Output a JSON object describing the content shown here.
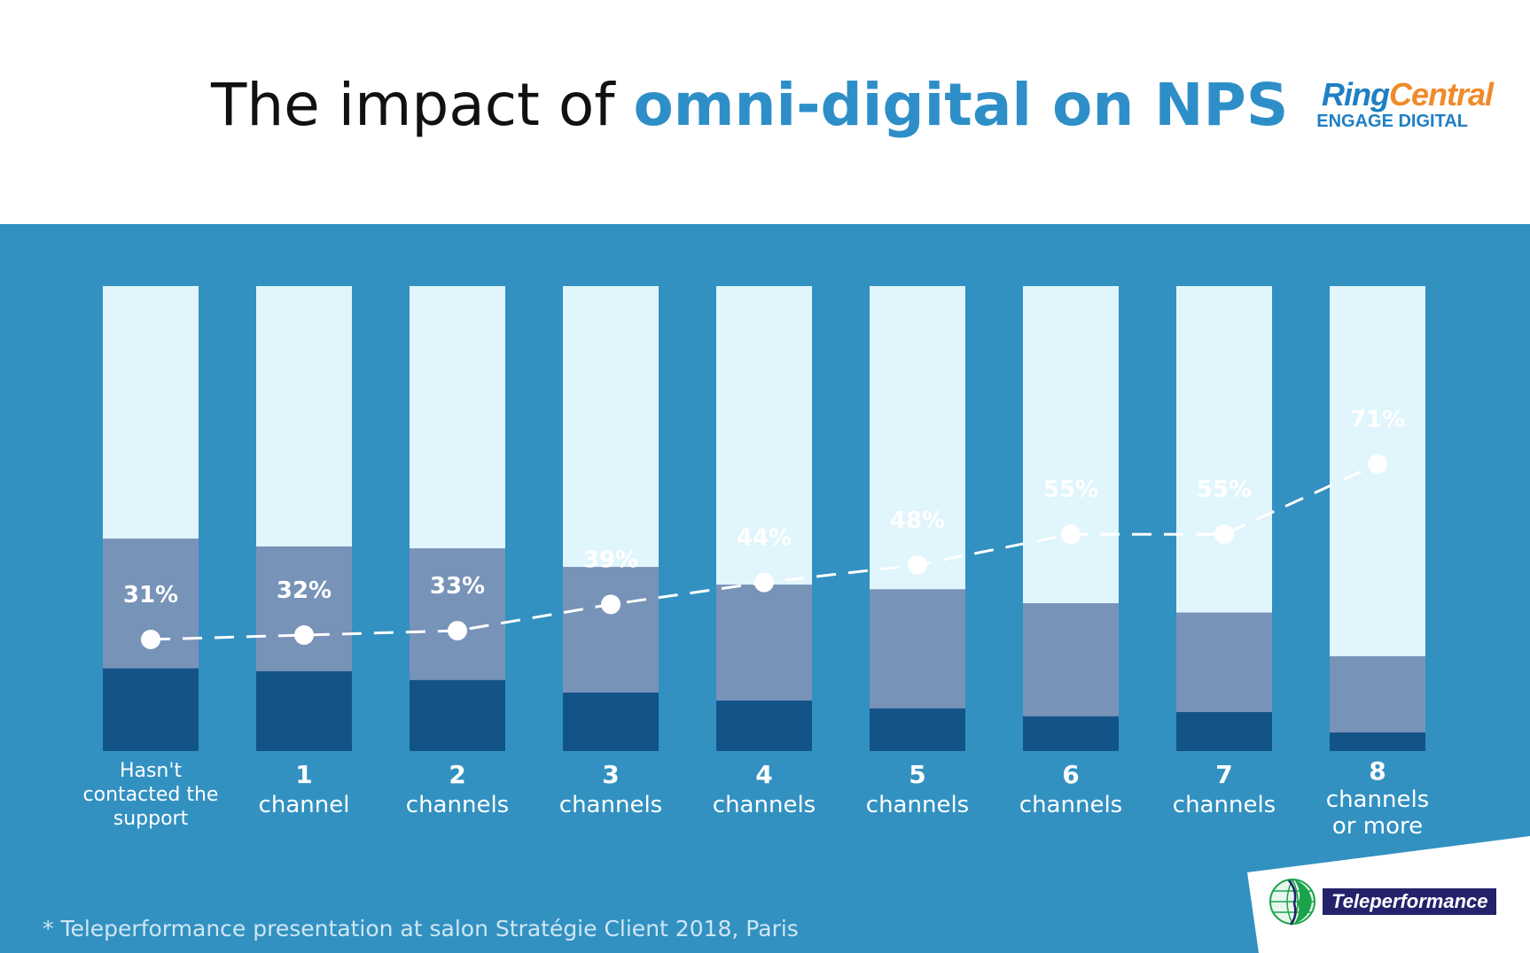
{
  "header": {
    "title_plain": "The impact of ",
    "title_highlight": "omni-digital on NPS",
    "logo_top_ring": "Ring",
    "logo_top_central": "Central",
    "logo_bottom": "ENGAGE DIGITAL"
  },
  "footer": {
    "note": "* Teleperformance presentation at salon Stratégie Client 2018, Paris",
    "partner_logo": "Teleperformance"
  },
  "colors": {
    "accent": "#2e8fc8",
    "band": "#3291c1",
    "segment_light": "#e0f5fc",
    "segment_mid": "#7893b8",
    "segment_dark": "#135488"
  },
  "chart_data": {
    "type": "bar",
    "stacked": true,
    "title": "The impact of omni-digital on NPS",
    "categories": [
      [
        "Hasn't",
        "contacted the",
        "support"
      ],
      [
        "1",
        "channel"
      ],
      [
        "2",
        "channels"
      ],
      [
        "3",
        "channels"
      ],
      [
        "4",
        "channels"
      ],
      [
        "5",
        "channels"
      ],
      [
        "6",
        "channels"
      ],
      [
        "7",
        "channels"
      ],
      [
        "8",
        "channels",
        "or more"
      ]
    ],
    "segments_percent": {
      "dark": [
        17.8,
        17.2,
        15.3,
        12.6,
        10.9,
        9.2,
        7.5,
        8.4,
        4.0
      ],
      "mid": [
        27.9,
        26.8,
        28.3,
        27.0,
        24.9,
        25.6,
        24.3,
        21.4,
        16.4
      ],
      "light": [
        54.3,
        56.0,
        56.4,
        60.4,
        64.2,
        65.2,
        68.2,
        70.2,
        79.6
      ]
    },
    "line_series": {
      "values": [
        31,
        32,
        33,
        39,
        44,
        48,
        55,
        55,
        71
      ],
      "labels": [
        "31%",
        "32%",
        "33%",
        "39%",
        "44%",
        "48%",
        "55%",
        "55%",
        "71%"
      ],
      "style": "dashed line with white dots"
    },
    "ylim": [
      0,
      100
    ],
    "grid": false,
    "legend": "none"
  }
}
